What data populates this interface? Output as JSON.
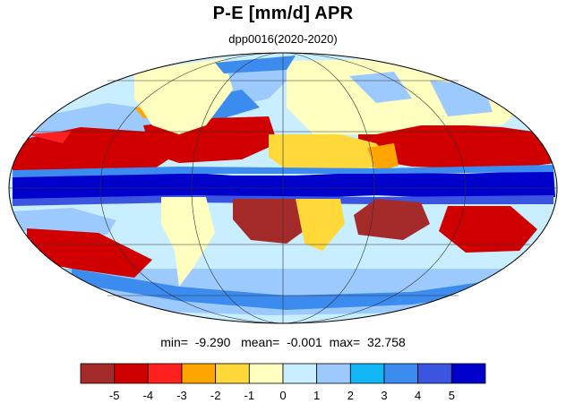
{
  "title": "P-E [mm/d] APR",
  "subtitle": "dpp0016(2020-2020)",
  "stats": {
    "min_label": "min=",
    "min": "-9.290",
    "mean_label": "mean=",
    "mean": "-0.001",
    "max_label": "max=",
    "max": "32.758"
  },
  "colorbar": {
    "labels": [
      "-5",
      "-4",
      "-3",
      "-2",
      "-1",
      "0",
      "1",
      "2",
      "3",
      "4",
      "5"
    ],
    "colors": [
      "#a52a2a",
      "#d00000",
      "#ff2020",
      "#ffa500",
      "#ffd93a",
      "#ffffc0",
      "#c8eeff",
      "#9ccaff",
      "#12b6f5",
      "#3c8cf0",
      "#3c55e0",
      "#0000cd"
    ]
  },
  "map": {
    "projection": "mollweide",
    "ocean_background": "#c8eeff",
    "land_background": "#ffffc0"
  }
}
